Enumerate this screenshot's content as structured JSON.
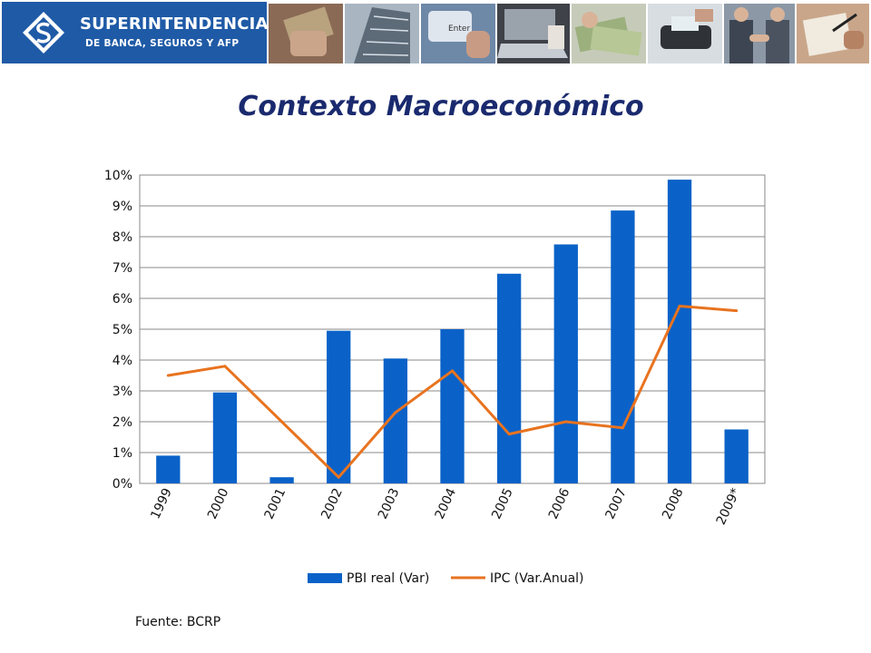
{
  "header": {
    "logo_title": "SUPERINTENDENCIA",
    "logo_subtitle": "DE BANCA, SEGUROS Y AFP",
    "brand_color": "#1f5aa6",
    "photo_icons": [
      "credit-card-photo-icon",
      "building-photo-icon",
      "keyboard-enter-photo-icon",
      "laptop-photo-icon",
      "banknotes-photo-icon",
      "card-terminal-photo-icon",
      "handshake-photo-icon",
      "signing-photo-icon"
    ]
  },
  "page_title": "Contexto Macroeconómico",
  "source": "Fuente: BCRP",
  "chart_data": {
    "type": "bar",
    "categories": [
      "1999",
      "2000",
      "2001",
      "2002",
      "2003",
      "2004",
      "2005",
      "2006",
      "2007",
      "2008",
      "2009*"
    ],
    "series": [
      {
        "name": "PBI real (Var)",
        "type": "bar",
        "color": "#0a62c8",
        "values": [
          0.9,
          2.95,
          0.2,
          4.95,
          4.05,
          5.0,
          6.8,
          7.75,
          8.85,
          9.85,
          1.75
        ]
      },
      {
        "name": "IPC (Var.Anual)",
        "type": "line",
        "color": "#e8731f",
        "values": [
          3.5,
          3.8,
          2.0,
          0.2,
          2.3,
          3.65,
          1.6,
          2.0,
          1.8,
          5.75,
          5.6
        ]
      }
    ],
    "y_tick_labels": [
      "0%",
      "1%",
      "2%",
      "3%",
      "4%",
      "5%",
      "6%",
      "7%",
      "8%",
      "9%",
      "10%"
    ],
    "ylim": [
      0,
      10
    ],
    "grid": true,
    "legend_position": "bottom"
  }
}
